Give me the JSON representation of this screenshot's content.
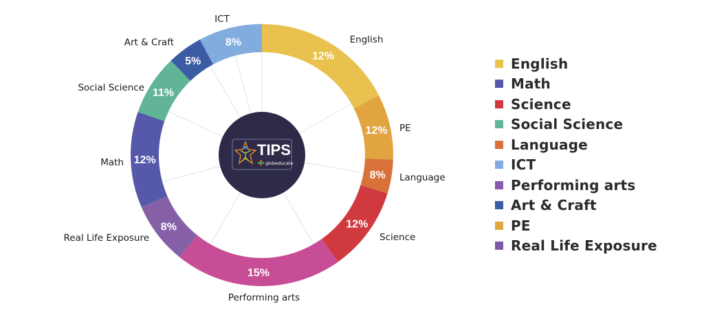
{
  "chart_data": {
    "type": "pie",
    "variant": "donut",
    "title": "",
    "center_logo": {
      "text": "TIPS",
      "subtext": "globeducate"
    },
    "categories": [
      "English",
      "PE",
      "Language",
      "Science",
      "Performing arts",
      "Real Life Exposure",
      "Math",
      "Social Science",
      "Art & Craft",
      "ICT"
    ],
    "values": [
      12,
      12,
      8,
      12,
      15,
      8,
      12,
      11,
      5,
      8
    ],
    "value_labels": [
      "12%",
      "12%",
      "8%",
      "12%",
      "15%",
      "8%",
      "12%",
      "11%",
      "5%",
      "8%"
    ],
    "colors": [
      "#E8C14E",
      "#E2A43E",
      "#D8713A",
      "#D03A3E",
      "#C84D97",
      "#8560A6",
      "#5659A9",
      "#62B497",
      "#3C5BA5",
      "#82ABDE"
    ],
    "boundaries_deg": [
      0,
      63,
      92,
      107,
      144.6,
      218.8,
      246.6,
      289.2,
      316.1,
      331.8,
      360
    ],
    "legend_position": "right",
    "legend": [
      {
        "label": "English",
        "color": "#E8C14E"
      },
      {
        "label": "Math",
        "color": "#5659A9"
      },
      {
        "label": "Science",
        "color": "#D03A3E"
      },
      {
        "label": "Social Science",
        "color": "#62B497"
      },
      {
        "label": "Language",
        "color": "#D8713A"
      },
      {
        "label": "ICT",
        "color": "#82ABDE"
      },
      {
        "label": "Performing arts",
        "color": "#8A5AAE"
      },
      {
        "label": "Art & Craft",
        "color": "#3C5BA5"
      },
      {
        "label": "PE",
        "color": "#E2A43E"
      },
      {
        "label": "Real Life Exposure",
        "color": "#7D5AA6"
      }
    ]
  }
}
